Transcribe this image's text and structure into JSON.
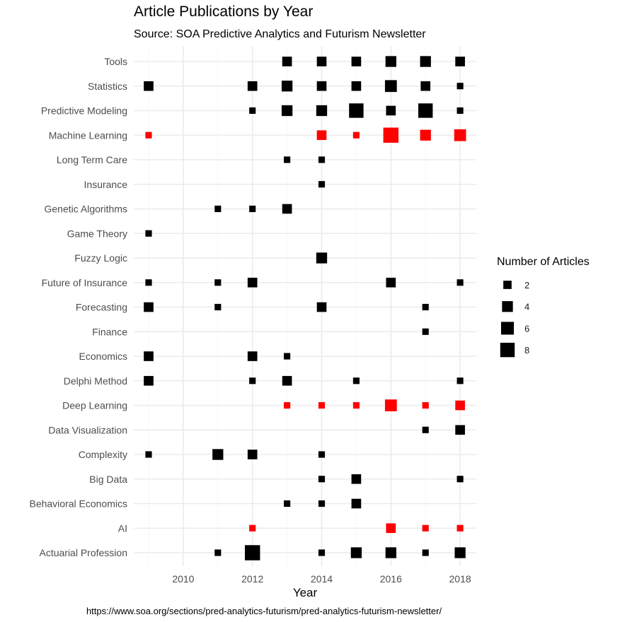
{
  "chart_data": {
    "type": "scatter",
    "title": "Article Publications by Year",
    "subtitle": "Source: SOA Predictive Analytics and Futurism Newsletter",
    "caption": "https://www.soa.org/sections/pred-analytics-futurism/pred-analytics-futurism-newsletter/",
    "xlabel": "Year",
    "ylabel": "",
    "xlim": [
      2008.6,
      2018.4
    ],
    "x_ticks": [
      2010,
      2012,
      2014,
      2016,
      2018
    ],
    "x_tick_labels": [
      "2010",
      "2012",
      "2014",
      "2016",
      "2018"
    ],
    "grid": true,
    "legend": {
      "title": "Number of Articles",
      "placement": "right",
      "entries": [
        {
          "label": "2",
          "size": 2
        },
        {
          "label": "4",
          "size": 4
        },
        {
          "label": "6",
          "size": 6
        },
        {
          "label": "8",
          "size": 8
        }
      ]
    },
    "colors": {
      "default": "#000000",
      "highlight": "#ff0000",
      "grid": "#ebebeb",
      "tick_text": "#4d4d4d"
    },
    "categories": [
      "Actuarial Profession",
      "AI",
      "Behavioral Economics",
      "Big Data",
      "Complexity",
      "Data Visualization",
      "Deep Learning",
      "Delphi Method",
      "Economics",
      "Finance",
      "Forecasting",
      "Future of Insurance",
      "Fuzzy Logic",
      "Game Theory",
      "Genetic Algorithms",
      "Insurance",
      "Long Term Care",
      "Machine Learning",
      "Predictive Modeling",
      "Statistics",
      "Tools"
    ],
    "highlighted_categories": [
      "AI",
      "Deep Learning",
      "Machine Learning"
    ],
    "points": [
      {
        "category": "Tools",
        "year": 2013,
        "count": 3
      },
      {
        "category": "Tools",
        "year": 2014,
        "count": 3
      },
      {
        "category": "Tools",
        "year": 2015,
        "count": 3
      },
      {
        "category": "Tools",
        "year": 2016,
        "count": 4
      },
      {
        "category": "Tools",
        "year": 2017,
        "count": 4
      },
      {
        "category": "Tools",
        "year": 2018,
        "count": 3
      },
      {
        "category": "Statistics",
        "year": 2009,
        "count": 3
      },
      {
        "category": "Statistics",
        "year": 2012,
        "count": 3
      },
      {
        "category": "Statistics",
        "year": 2013,
        "count": 4
      },
      {
        "category": "Statistics",
        "year": 2014,
        "count": 3
      },
      {
        "category": "Statistics",
        "year": 2015,
        "count": 3
      },
      {
        "category": "Statistics",
        "year": 2016,
        "count": 5
      },
      {
        "category": "Statistics",
        "year": 2017,
        "count": 3
      },
      {
        "category": "Statistics",
        "year": 2018,
        "count": 1
      },
      {
        "category": "Predictive Modeling",
        "year": 2012,
        "count": 1
      },
      {
        "category": "Predictive Modeling",
        "year": 2013,
        "count": 4
      },
      {
        "category": "Predictive Modeling",
        "year": 2014,
        "count": 4
      },
      {
        "category": "Predictive Modeling",
        "year": 2015,
        "count": 8
      },
      {
        "category": "Predictive Modeling",
        "year": 2016,
        "count": 3
      },
      {
        "category": "Predictive Modeling",
        "year": 2017,
        "count": 8
      },
      {
        "category": "Predictive Modeling",
        "year": 2018,
        "count": 1
      },
      {
        "category": "Machine Learning",
        "year": 2009,
        "count": 1
      },
      {
        "category": "Machine Learning",
        "year": 2014,
        "count": 3
      },
      {
        "category": "Machine Learning",
        "year": 2015,
        "count": 1
      },
      {
        "category": "Machine Learning",
        "year": 2016,
        "count": 9
      },
      {
        "category": "Machine Learning",
        "year": 2017,
        "count": 4
      },
      {
        "category": "Machine Learning",
        "year": 2018,
        "count": 5
      },
      {
        "category": "Long Term Care",
        "year": 2013,
        "count": 1
      },
      {
        "category": "Long Term Care",
        "year": 2014,
        "count": 1
      },
      {
        "category": "Insurance",
        "year": 2014,
        "count": 1
      },
      {
        "category": "Genetic Algorithms",
        "year": 2011,
        "count": 1
      },
      {
        "category": "Genetic Algorithms",
        "year": 2012,
        "count": 1
      },
      {
        "category": "Genetic Algorithms",
        "year": 2013,
        "count": 3
      },
      {
        "category": "Game Theory",
        "year": 2009,
        "count": 1
      },
      {
        "category": "Fuzzy Logic",
        "year": 2014,
        "count": 4
      },
      {
        "category": "Future of Insurance",
        "year": 2009,
        "count": 1
      },
      {
        "category": "Future of Insurance",
        "year": 2011,
        "count": 1
      },
      {
        "category": "Future of Insurance",
        "year": 2012,
        "count": 3
      },
      {
        "category": "Future of Insurance",
        "year": 2016,
        "count": 3
      },
      {
        "category": "Future of Insurance",
        "year": 2018,
        "count": 1
      },
      {
        "category": "Forecasting",
        "year": 2009,
        "count": 3
      },
      {
        "category": "Forecasting",
        "year": 2011,
        "count": 1
      },
      {
        "category": "Forecasting",
        "year": 2014,
        "count": 3
      },
      {
        "category": "Forecasting",
        "year": 2017,
        "count": 1
      },
      {
        "category": "Finance",
        "year": 2017,
        "count": 1
      },
      {
        "category": "Economics",
        "year": 2009,
        "count": 3
      },
      {
        "category": "Economics",
        "year": 2012,
        "count": 3
      },
      {
        "category": "Economics",
        "year": 2013,
        "count": 1
      },
      {
        "category": "Delphi Method",
        "year": 2009,
        "count": 3
      },
      {
        "category": "Delphi Method",
        "year": 2012,
        "count": 1
      },
      {
        "category": "Delphi Method",
        "year": 2013,
        "count": 3
      },
      {
        "category": "Delphi Method",
        "year": 2015,
        "count": 1
      },
      {
        "category": "Delphi Method",
        "year": 2018,
        "count": 1
      },
      {
        "category": "Deep Learning",
        "year": 2013,
        "count": 1
      },
      {
        "category": "Deep Learning",
        "year": 2014,
        "count": 1
      },
      {
        "category": "Deep Learning",
        "year": 2015,
        "count": 1
      },
      {
        "category": "Deep Learning",
        "year": 2016,
        "count": 5
      },
      {
        "category": "Deep Learning",
        "year": 2017,
        "count": 1
      },
      {
        "category": "Deep Learning",
        "year": 2018,
        "count": 3
      },
      {
        "category": "Data Visualization",
        "year": 2017,
        "count": 1
      },
      {
        "category": "Data Visualization",
        "year": 2018,
        "count": 3
      },
      {
        "category": "Complexity",
        "year": 2009,
        "count": 1
      },
      {
        "category": "Complexity",
        "year": 2011,
        "count": 4
      },
      {
        "category": "Complexity",
        "year": 2012,
        "count": 3
      },
      {
        "category": "Complexity",
        "year": 2014,
        "count": 1
      },
      {
        "category": "Big Data",
        "year": 2014,
        "count": 1
      },
      {
        "category": "Big Data",
        "year": 2015,
        "count": 3
      },
      {
        "category": "Big Data",
        "year": 2018,
        "count": 1
      },
      {
        "category": "Behavioral Economics",
        "year": 2013,
        "count": 1
      },
      {
        "category": "Behavioral Economics",
        "year": 2014,
        "count": 1
      },
      {
        "category": "Behavioral Economics",
        "year": 2015,
        "count": 3
      },
      {
        "category": "AI",
        "year": 2012,
        "count": 1
      },
      {
        "category": "AI",
        "year": 2016,
        "count": 3
      },
      {
        "category": "AI",
        "year": 2017,
        "count": 1
      },
      {
        "category": "AI",
        "year": 2018,
        "count": 1
      },
      {
        "category": "Actuarial Profession",
        "year": 2011,
        "count": 1
      },
      {
        "category": "Actuarial Profession",
        "year": 2012,
        "count": 9
      },
      {
        "category": "Actuarial Profession",
        "year": 2014,
        "count": 1
      },
      {
        "category": "Actuarial Profession",
        "year": 2015,
        "count": 4
      },
      {
        "category": "Actuarial Profession",
        "year": 2016,
        "count": 4
      },
      {
        "category": "Actuarial Profession",
        "year": 2017,
        "count": 1
      },
      {
        "category": "Actuarial Profession",
        "year": 2018,
        "count": 4
      }
    ]
  }
}
